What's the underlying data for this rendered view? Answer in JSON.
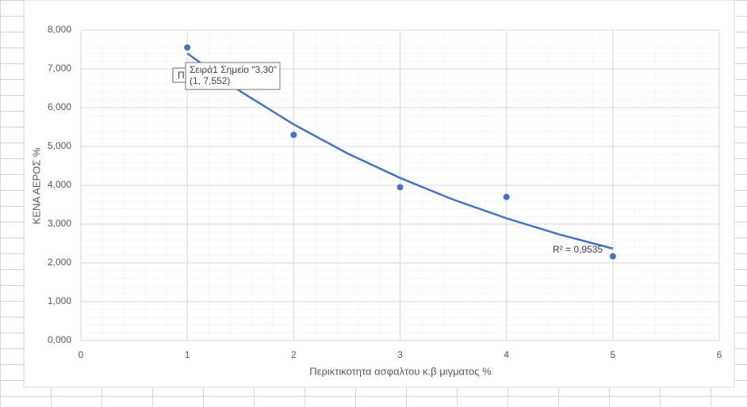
{
  "chart_data": {
    "type": "scatter",
    "x_label": "Περικτικοτητα ασφαλτου κ.β μιγματος %",
    "y_label": "ΚΕΝΑ ΑΕΡΟΣ %",
    "series": [
      {
        "name": "Σειρά1",
        "color": "#4472c4",
        "x": [
          1,
          2,
          3,
          4,
          5
        ],
        "values": [
          7.552,
          5.3,
          3.95,
          3.7,
          2.17
        ]
      }
    ],
    "trendline": {
      "type": "exponential",
      "color": "#4472c4",
      "x": [
        1,
        1.5,
        2,
        2.5,
        3,
        3.5,
        4,
        4.5,
        5
      ],
      "values": [
        7.4,
        6.42,
        5.57,
        4.83,
        4.19,
        3.63,
        3.15,
        2.73,
        2.37
      ],
      "label": "R² = 0,9535"
    },
    "xlim": [
      0,
      6
    ],
    "xticks": [
      0,
      1,
      2,
      3,
      4,
      5,
      6
    ],
    "ylim": [
      0,
      8
    ],
    "yticks": [
      {
        "value": 0,
        "label": "0,000"
      },
      {
        "value": 1,
        "label": "1,000"
      },
      {
        "value": 2,
        "label": "2,000"
      },
      {
        "value": 3,
        "label": "3,000"
      },
      {
        "value": 4,
        "label": "4,000"
      },
      {
        "value": 5,
        "label": "5,000"
      },
      {
        "value": 6,
        "label": "6,000"
      },
      {
        "value": 7,
        "label": "7,000"
      },
      {
        "value": 8,
        "label": "8,000"
      }
    ],
    "grid": true,
    "tooltip": {
      "behind": "Π",
      "line1": "Σειρά1 Σημείο \"3,30\"",
      "line2": "(1, 7,552)"
    }
  }
}
